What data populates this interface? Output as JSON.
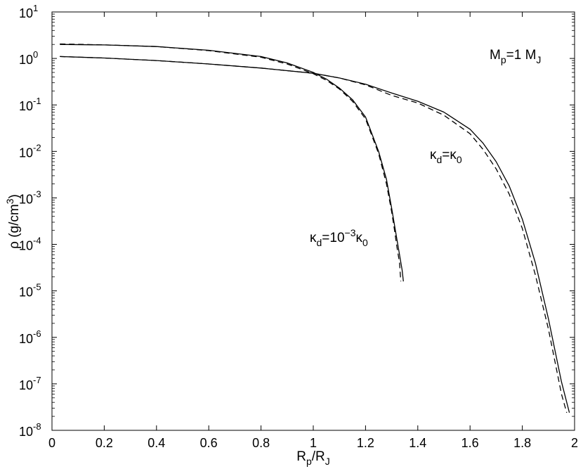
{
  "chart_data": {
    "type": "line",
    "xlabel": {
      "base": "R",
      "sub1": "p",
      "mid": "/R",
      "sub2": "J"
    },
    "ylabel": {
      "text": "ρ (g/cm",
      "sup": "3",
      "close": ")"
    },
    "xlim": [
      0,
      2
    ],
    "ylim_exponent": [
      -8,
      1
    ],
    "yscale": "log",
    "grid": false,
    "xticks": [
      "0",
      "0.2",
      "0.4",
      "0.6",
      "0.8",
      "1",
      "1.2",
      "1.4",
      "1.6",
      "1.8",
      "2"
    ],
    "yticks": [
      {
        "exp": "1"
      },
      {
        "exp": "0"
      },
      {
        "exp": "-1"
      },
      {
        "exp": "-2"
      },
      {
        "exp": "-3"
      },
      {
        "exp": "-4"
      },
      {
        "exp": "-5"
      },
      {
        "exp": "-6"
      },
      {
        "exp": "-7"
      },
      {
        "exp": "-8"
      }
    ],
    "ytick_base": "10",
    "annotations": {
      "mass": {
        "a": "M",
        "a_sub": "p",
        "b": "=1 M",
        "b_sub": "J"
      },
      "kappa_equal": {
        "a": "κ",
        "a_sub": "d",
        "b": "=κ",
        "b_sub": "0"
      },
      "kappa_low": {
        "a": "κ",
        "a_sub": "d",
        "b": "=10",
        "b_sup": "−3",
        "c": "κ",
        "c_sub": "0"
      }
    },
    "series": [
      {
        "style": "solid",
        "x": [
          0.03,
          0.2,
          0.4,
          0.6,
          0.8,
          0.9,
          1.0,
          1.05,
          1.1,
          1.15,
          1.2,
          1.25,
          1.28,
          1.3,
          1.32,
          1.33,
          1.34,
          1.345
        ],
        "y": [
          2.0,
          1.95,
          1.8,
          1.5,
          1.1,
          0.8,
          0.5,
          0.36,
          0.23,
          0.13,
          0.055,
          0.01,
          0.0025,
          0.0006,
          0.00013,
          6e-05,
          2.8e-05,
          1.6e-05
        ]
      },
      {
        "style": "dashed",
        "x": [
          0.03,
          0.2,
          0.4,
          0.6,
          0.8,
          0.9,
          1.0,
          1.05,
          1.1,
          1.15,
          1.2,
          1.25,
          1.28,
          1.3,
          1.31,
          1.32,
          1.33,
          1.335
        ],
        "y": [
          2.05,
          1.96,
          1.8,
          1.47,
          1.06,
          0.76,
          0.47,
          0.34,
          0.22,
          0.12,
          0.05,
          0.009,
          0.002,
          0.0005,
          0.00022,
          9e-05,
          4e-05,
          1.6e-05
        ]
      },
      {
        "style": "solid",
        "x": [
          0.03,
          0.2,
          0.4,
          0.6,
          0.8,
          1.0,
          1.1,
          1.2,
          1.3,
          1.4,
          1.5,
          1.6,
          1.65,
          1.7,
          1.75,
          1.8,
          1.85,
          1.9,
          1.95,
          1.98
        ],
        "y": [
          1.1,
          1.02,
          0.9,
          0.76,
          0.62,
          0.48,
          0.38,
          0.28,
          0.18,
          0.12,
          0.07,
          0.03,
          0.015,
          0.006,
          0.0018,
          0.00035,
          4e-05,
          2.5e-06,
          1.1e-07,
          2.4e-08
        ]
      },
      {
        "style": "dashed",
        "x": [
          0.03,
          0.2,
          0.4,
          0.6,
          0.8,
          1.0,
          1.1,
          1.2,
          1.3,
          1.4,
          1.5,
          1.6,
          1.65,
          1.7,
          1.75,
          1.8,
          1.85,
          1.9,
          1.95,
          1.97
        ],
        "y": [
          1.1,
          1.02,
          0.9,
          0.76,
          0.62,
          0.48,
          0.38,
          0.27,
          0.16,
          0.11,
          0.06,
          0.024,
          0.011,
          0.0042,
          0.0012,
          0.00022,
          2.2e-05,
          1.5e-06,
          6e-08,
          2.4e-08
        ]
      }
    ]
  }
}
